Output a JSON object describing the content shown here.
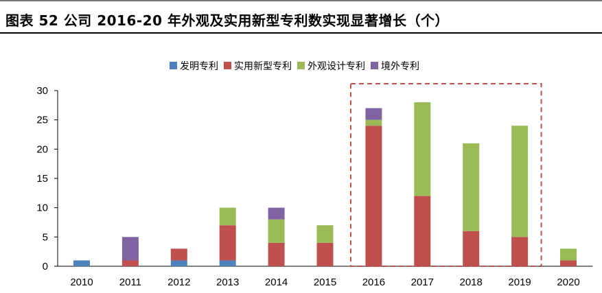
{
  "title": "图表 52 公司 2016-20 年外观及实用新型专利数实现显著增长（个）",
  "colors": {
    "invention": "#4f81bd",
    "utility": "#c0504d",
    "design": "#9bbb59",
    "overseas": "#8064a2",
    "highlight": "#c0504d"
  },
  "chart_data": {
    "type": "bar",
    "stacked": true,
    "categories": [
      "2010",
      "2011",
      "2012",
      "2013",
      "2014",
      "2015",
      "2016",
      "2017",
      "2018",
      "2019",
      "2020"
    ],
    "series": [
      {
        "name": "发明专利",
        "color_key": "invention",
        "values": [
          1,
          0,
          1,
          1,
          0,
          0,
          0,
          0,
          0,
          0,
          0
        ]
      },
      {
        "name": "实用新型专利",
        "color_key": "utility",
        "values": [
          0,
          1,
          2,
          6,
          4,
          4,
          24,
          12,
          6,
          5,
          1
        ]
      },
      {
        "name": "外观设计专利",
        "color_key": "design",
        "values": [
          0,
          0,
          0,
          3,
          4,
          3,
          1,
          16,
          15,
          19,
          2
        ]
      },
      {
        "name": "境外专利",
        "color_key": "overseas",
        "values": [
          0,
          4,
          0,
          0,
          2,
          0,
          2,
          0,
          0,
          0,
          0
        ]
      }
    ],
    "ylim": [
      0,
      30
    ],
    "yticks": [
      "0",
      "5",
      "10",
      "15",
      "20",
      "25",
      "30"
    ],
    "legend_position": "top",
    "grid": false,
    "highlight_range": [
      "2016",
      "2019"
    ],
    "xlabel": "",
    "ylabel": ""
  }
}
